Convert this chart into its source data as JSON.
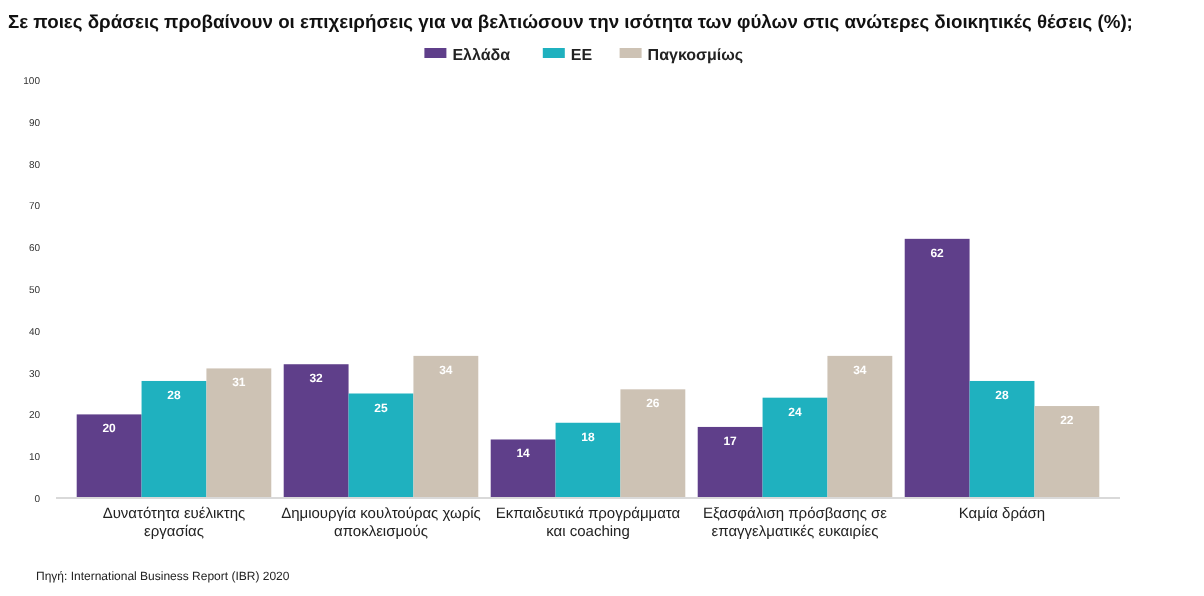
{
  "chart_data": {
    "type": "bar",
    "title": "Σε ποιες δράσεις προβαίνουν οι επιχειρήσεις για να βελτιώσουν την ισότητα των φύλων στις ανώτερες διοικητικές θέσεις (%);",
    "categories": [
      "Δυνατότητα ευέλικτης εργασίας",
      "Δημιουργία κουλτούρας χωρίς αποκλεισμούς",
      "Εκπαιδευτικά προγράμματα και coaching",
      "Εξασφάλιση πρόσβασης σε επαγγελματικές ευκαιρίες",
      "Καμία δράση"
    ],
    "series": [
      {
        "name": "Ελλάδα",
        "color": "#5f3f8a",
        "values": [
          20,
          32,
          14,
          17,
          62
        ]
      },
      {
        "name": "ΕΕ",
        "color": "#1fb1bf",
        "values": [
          28,
          25,
          18,
          24,
          28
        ]
      },
      {
        "name": "Παγκοσμίως",
        "color": "#cdc2b4",
        "values": [
          31,
          34,
          26,
          34,
          22
        ]
      }
    ],
    "ylim": [
      0,
      100
    ],
    "yticks": [
      0,
      10,
      20,
      30,
      40,
      50,
      60,
      70,
      80,
      90,
      100
    ],
    "grid": false,
    "legend": "top",
    "data_labels": true,
    "annotations": [
      "Πηγή: International Business Report (IBR) 2020"
    ]
  }
}
